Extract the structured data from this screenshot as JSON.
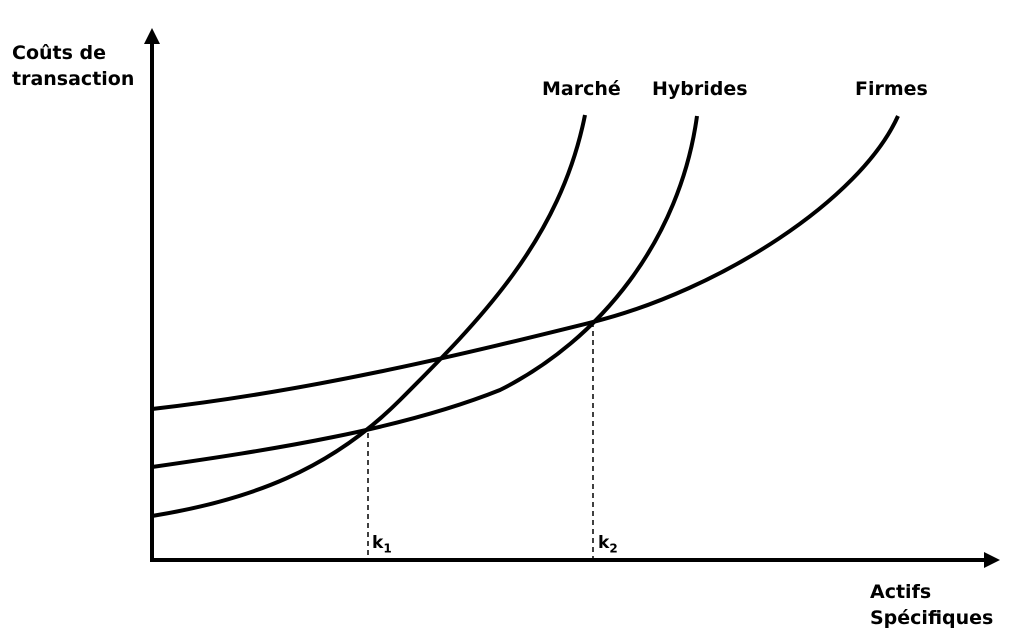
{
  "axes": {
    "y_title_line1": "Coûts de",
    "y_title_line2": "transaction",
    "x_title_line1": "Actifs",
    "x_title_line2": "Spécifiques"
  },
  "curves": [
    {
      "name": "Marché"
    },
    {
      "name": "Hybrides"
    },
    {
      "name": "Firmes"
    }
  ],
  "thresholds": [
    {
      "base": "k",
      "sub": "1"
    },
    {
      "base": "k",
      "sub": "2"
    }
  ],
  "colors": {
    "ink": "#000000",
    "background": "#ffffff"
  }
}
